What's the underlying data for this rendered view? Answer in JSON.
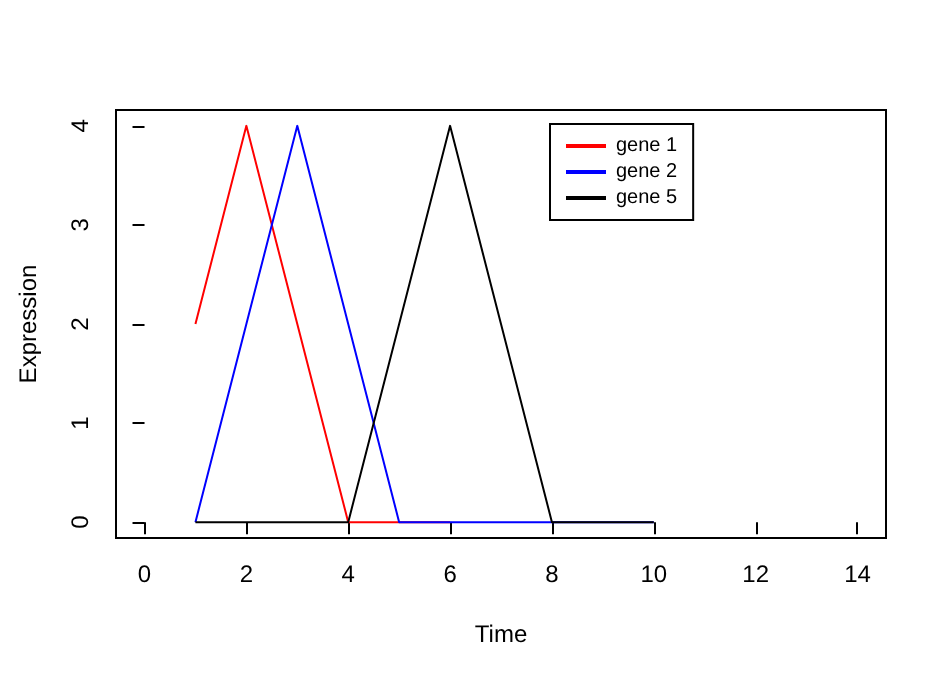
{
  "chart_data": {
    "type": "line",
    "xlabel": "Time",
    "ylabel": "Expression",
    "x": [
      1,
      2,
      3,
      4,
      5,
      6,
      7,
      8,
      9,
      10
    ],
    "series": [
      {
        "name": "gene 1",
        "color": "#ff0000",
        "values": [
          2,
          4,
          2,
          0,
          0,
          0,
          null,
          null,
          null,
          null
        ]
      },
      {
        "name": "gene 2",
        "color": "#0000ff",
        "values": [
          0,
          2,
          4,
          2,
          0,
          0,
          0,
          0,
          0,
          0
        ]
      },
      {
        "name": "gene 5",
        "color": "#000000",
        "values": [
          0,
          0,
          0,
          0,
          2,
          4,
          2,
          0,
          0,
          0
        ]
      }
    ],
    "xlim": [
      -0.56,
      14.56
    ],
    "xticks": [
      0,
      2,
      4,
      6,
      8,
      10,
      12,
      14
    ],
    "ylim": [
      -0.16,
      4.16
    ],
    "yticks": [
      0,
      1,
      2,
      3,
      4
    ],
    "grid": false,
    "legend": "top right",
    "marker": "none",
    "line_style": "solid"
  }
}
